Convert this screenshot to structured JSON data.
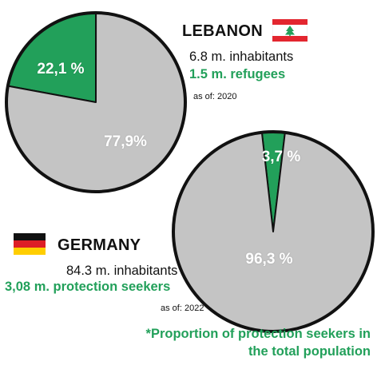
{
  "colors": {
    "refugee_green": "#22a05a",
    "population_grey": "#c4c4c4",
    "outline": "#111111",
    "text_green": "#22a05a"
  },
  "lebanon": {
    "name": "LEBANON",
    "flag_icon": "lebanon-flag-icon",
    "inhabitants": "6.8 m. inhabitants",
    "refugees": "1.5 m. refugees",
    "as_of": "as of: 2020"
  },
  "germany": {
    "name": "GERMANY",
    "flag_icon": "germany-flag-icon",
    "inhabitants": "84.3 m. inhabitants",
    "seekers": "3,08 m. protection seekers",
    "as_of": "as of: 2022"
  },
  "footnote": "*Proportion of protection seekers in the total population",
  "chart_data": [
    {
      "type": "pie",
      "title": "",
      "slices": [
        {
          "label": "22,1 %",
          "value": 22.1,
          "color": "#22a05a"
        },
        {
          "label": "77,9%",
          "value": 77.9,
          "color": "#c4c4c4"
        }
      ]
    },
    {
      "type": "pie",
      "title": "",
      "slices": [
        {
          "label": "3,7 %",
          "value": 3.7,
          "color": "#22a05a"
        },
        {
          "label": "96,3 %",
          "value": 96.3,
          "color": "#c4c4c4"
        }
      ]
    }
  ]
}
